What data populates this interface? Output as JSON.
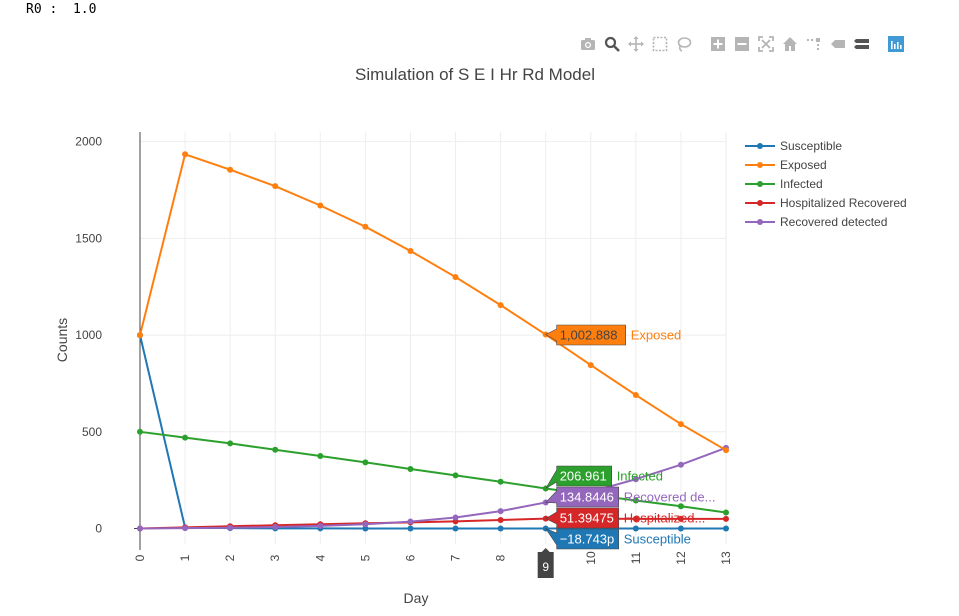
{
  "header": {
    "r0_label": "R0 :",
    "r0_value": "1.0"
  },
  "modebar": {
    "buttons": [
      {
        "name": "camera-icon",
        "color": "#b5b5b5"
      },
      {
        "name": "zoom-icon",
        "color": "#555555"
      },
      {
        "name": "pan-icon",
        "color": "#b5b5b5"
      },
      {
        "name": "box-select-icon",
        "color": "#b5b5b5"
      },
      {
        "name": "lasso-select-icon",
        "color": "#b5b5b5"
      },
      {
        "name": "zoom-in-icon",
        "color": "#b5b5b5"
      },
      {
        "name": "zoom-out-icon",
        "color": "#b5b5b5"
      },
      {
        "name": "autoscale-icon",
        "color": "#b5b5b5"
      },
      {
        "name": "reset-axes-icon",
        "color": "#b5b5b5"
      },
      {
        "name": "spike-lines-icon",
        "color": "#b5b5b5"
      },
      {
        "name": "hover-closest-icon",
        "color": "#b5b5b5"
      },
      {
        "name": "hover-compare-icon",
        "color": "#555555"
      },
      {
        "name": "plotly-logo-icon",
        "color": "#3f9ad6"
      }
    ]
  },
  "chart_data": {
    "type": "line",
    "title": "Simulation of S E I Hr Rd Model",
    "xlabel": "Day",
    "ylabel": "Counts",
    "x": [
      0,
      1,
      2,
      3,
      4,
      5,
      6,
      7,
      8,
      9,
      10,
      11,
      12,
      13
    ],
    "xlim": [
      0,
      13
    ],
    "ylim": [
      -80,
      2050
    ],
    "yticks": [
      0,
      500,
      1000,
      1500,
      2000
    ],
    "ytick_labels": [
      "0",
      "500",
      "1000",
      "1500",
      "2000"
    ],
    "grid": true,
    "legend_position": "right",
    "series": [
      {
        "name": "Susceptible",
        "color": "#1f77b4",
        "values": [
          1000,
          5,
          2,
          1,
          0.5,
          0.2,
          0.1,
          0.05,
          0.02,
          0,
          0,
          0,
          0,
          0
        ]
      },
      {
        "name": "Exposed",
        "color": "#ff7f0e",
        "values": [
          1000,
          1935,
          1855,
          1770,
          1670,
          1560,
          1435,
          1300,
          1155,
          1002.888,
          845,
          690,
          540,
          405
        ]
      },
      {
        "name": "Infected",
        "color": "#2ca02c",
        "values": [
          500,
          470,
          440,
          407,
          375,
          342,
          308,
          275,
          242,
          206.961,
          175,
          145,
          115,
          83
        ]
      },
      {
        "name": "Hospitalized Recovered",
        "color": "#d62728",
        "values": [
          0,
          6,
          12,
          17,
          22,
          27,
          32,
          37,
          44,
          51.39475,
          51,
          50,
          50,
          50
        ]
      },
      {
        "name": "Recovered detected",
        "color": "#9467bd",
        "values": [
          0,
          2,
          4,
          8,
          14,
          22,
          36,
          57,
          90,
          134.8446,
          190,
          255,
          330,
          417
        ]
      }
    ],
    "hover": {
      "x": 9,
      "x_label": "9",
      "labels": [
        {
          "series": "Exposed",
          "value_text": "1,002.888",
          "name_text": "Exposed",
          "y": 1002.888
        },
        {
          "series": "Infected",
          "value_text": "206.961",
          "name_text": "Infected",
          "y": 206.961
        },
        {
          "series": "Recovered detected",
          "value_text": "134.8446",
          "name_text": "Recovered de...",
          "y": 134.8446
        },
        {
          "series": "Hospitalized Recovered",
          "value_text": "51.39475",
          "name_text": "Hospitalized...",
          "y": 51.39475
        },
        {
          "series": "Susceptible",
          "value_text": "−18.743p",
          "name_text": "Susceptible",
          "y": 0
        }
      ]
    }
  }
}
